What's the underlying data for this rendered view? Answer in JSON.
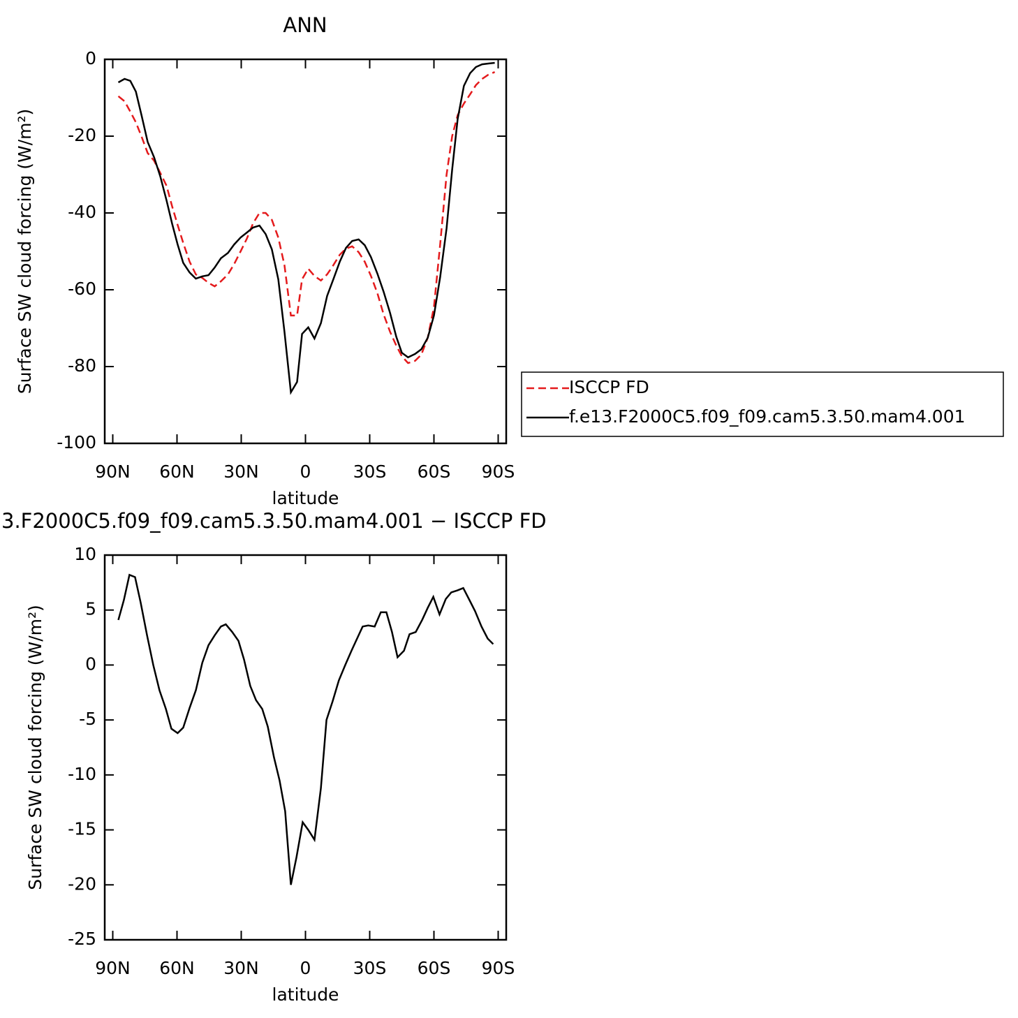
{
  "chart_data": [
    {
      "type": "line",
      "title": "ANN",
      "xlabel": "latitude",
      "ylabel": "Surface SW cloud forcing (W/m²)",
      "x": [
        87.4,
        84.5,
        81.8,
        79.2,
        76.5,
        73.7,
        70.7,
        67.8,
        64.9,
        62.3,
        59.7,
        57.1,
        54.1,
        51.2,
        48.2,
        45.3,
        42.4,
        39.5,
        36.2,
        33.3,
        30.3,
        27.4,
        24.5,
        21.5,
        18.6,
        15.7,
        12.7,
        9.8,
        6.8,
        3.9,
        1.6,
        -1.3,
        -4.2,
        -7.2,
        -10.1,
        -13,
        -16,
        -18.9,
        -21.8,
        -24.8,
        -27.7,
        -30.6,
        -33.6,
        -36.5,
        -39.5,
        -42.4,
        -45,
        -47.9,
        -51.2,
        -54.1,
        -57.1,
        -60,
        -62.9,
        -65.9,
        -68.5,
        -71.1,
        -74,
        -76.9,
        -79.6,
        -82.5,
        -85.4,
        -88.4
      ],
      "series": [
        {
          "name": "ISCCP FD",
          "color": "#e41a1c",
          "dashed": true,
          "values": [
            -9.6,
            -10.9,
            -13.6,
            -16.4,
            -20.2,
            -24.4,
            -26.4,
            -29.6,
            -32.9,
            -38.2,
            -43.1,
            -47.8,
            -52.7,
            -56,
            -56.9,
            -58.2,
            -59.1,
            -57.8,
            -56,
            -53.3,
            -50,
            -46.7,
            -42.7,
            -40,
            -40,
            -41.8,
            -46.4,
            -53.6,
            -66.7,
            -66.7,
            -57.3,
            -54.5,
            -56.4,
            -57.6,
            -56,
            -53.6,
            -50.9,
            -49.3,
            -48.7,
            -50.2,
            -52.7,
            -56.4,
            -60.9,
            -66.4,
            -70.9,
            -74.5,
            -77.3,
            -79.1,
            -78.5,
            -76.9,
            -72.5,
            -64.5,
            -48.2,
            -30,
            -20,
            -14.5,
            -11.5,
            -9.1,
            -6.7,
            -5.1,
            -4,
            -3.3
          ]
        },
        {
          "name": "f.e13.F2000C5.f09_f09.cam5.3.50.mam4.001",
          "color": "#000000",
          "dashed": false,
          "values": [
            -6,
            -5.1,
            -5.6,
            -8.4,
            -14.7,
            -21.5,
            -25.5,
            -30.5,
            -36.7,
            -42.7,
            -48.2,
            -53,
            -55.5,
            -57.1,
            -56.5,
            -56.2,
            -54.2,
            -51.8,
            -50.4,
            -48.2,
            -46.4,
            -45.1,
            -43.8,
            -43.3,
            -45.5,
            -49.5,
            -57.3,
            -70.9,
            -86.7,
            -84,
            -71.5,
            -69.8,
            -72.7,
            -68.7,
            -61.6,
            -57.3,
            -52.7,
            -49.1,
            -47.3,
            -46.9,
            -48.4,
            -51.5,
            -55.8,
            -60.5,
            -66,
            -72.2,
            -76.4,
            -77.6,
            -76.7,
            -75.5,
            -72.5,
            -66.7,
            -56.7,
            -44,
            -28.7,
            -15.5,
            -6.9,
            -3.6,
            -2,
            -1.3,
            -1.1,
            -0.9
          ]
        }
      ],
      "xlim": [
        93.75,
        -93.75
      ],
      "xticks": [
        {
          "value": 90,
          "label": "90N"
        },
        {
          "value": 60,
          "label": "60N"
        },
        {
          "value": 30,
          "label": "30N"
        },
        0,
        {
          "value": -30,
          "label": "30S"
        },
        {
          "value": -60,
          "label": "60S"
        },
        {
          "value": -90,
          "label": "90S"
        }
      ],
      "ylim": [
        -100,
        0
      ],
      "yticks": [
        0,
        -20,
        -40,
        -60,
        -80,
        -100
      ],
      "legend": "right"
    },
    {
      "type": "line",
      "title": "3.F2000C5.f09_f09.cam5.3.50.mam4.001 − ISCCP FD",
      "xlabel": "latitude",
      "ylabel": "Surface SW cloud forcing (W/m²)",
      "x": [
        87.4,
        84.8,
        82.2,
        79.6,
        77,
        74,
        71.1,
        68.2,
        65.2,
        62.6,
        59.7,
        57.1,
        54.1,
        51.2,
        48.2,
        45.3,
        42.4,
        39.5,
        37.2,
        34.2,
        31.3,
        28.7,
        25.8,
        23.1,
        20.2,
        17.6,
        14.7,
        12.1,
        9.5,
        6.8,
        4.2,
        1.3,
        -1.3,
        -4.2,
        -7.2,
        -9.8,
        -12.7,
        -15.6,
        -18.6,
        -21.5,
        -24.1,
        -26.7,
        -29.3,
        -32.3,
        -35.2,
        -37.8,
        -40.4,
        -43,
        -46,
        -48.6,
        -51.5,
        -54.5,
        -57.1,
        -59.7,
        -62.6,
        -65.5,
        -68.1,
        -71.1,
        -73.7,
        -76.6,
        -79.2,
        -82.2,
        -85.1,
        -87.7
      ],
      "color": "#000000",
      "values": [
        4.1,
        5.9,
        8.2,
        8,
        5.7,
        2.7,
        0,
        -2.3,
        -4,
        -5.8,
        -6.2,
        -5.7,
        -3.9,
        -2.3,
        0.2,
        1.8,
        2.7,
        3.5,
        3.7,
        3,
        2.2,
        0.5,
        -1.9,
        -3.2,
        -4,
        -5.6,
        -8.4,
        -10.5,
        -13.3,
        -20,
        -17.5,
        -14.3,
        -15,
        -15.9,
        -11.2,
        -5,
        -3.3,
        -1.4,
        0,
        1.3,
        2.4,
        3.5,
        3.6,
        3.5,
        4.8,
        4.8,
        3,
        0.7,
        1.3,
        2.8,
        3,
        4.1,
        5.2,
        6.2,
        4.6,
        6,
        6.6,
        6.8,
        7,
        5.9,
        4.9,
        3.5,
        2.4,
        1.9
      ],
      "xlim": [
        93.75,
        -93.75
      ],
      "xticks": [
        {
          "value": 90,
          "label": "90N"
        },
        {
          "value": 60,
          "label": "60N"
        },
        {
          "value": 30,
          "label": "30N"
        },
        0,
        {
          "value": -30,
          "label": "30S"
        },
        {
          "value": -60,
          "label": "60S"
        },
        {
          "value": -90,
          "label": "90S"
        }
      ],
      "ylim": [
        -25,
        10
      ],
      "yticks": [
        10,
        5,
        0,
        -5,
        -10,
        -15,
        -20,
        -25
      ]
    }
  ]
}
